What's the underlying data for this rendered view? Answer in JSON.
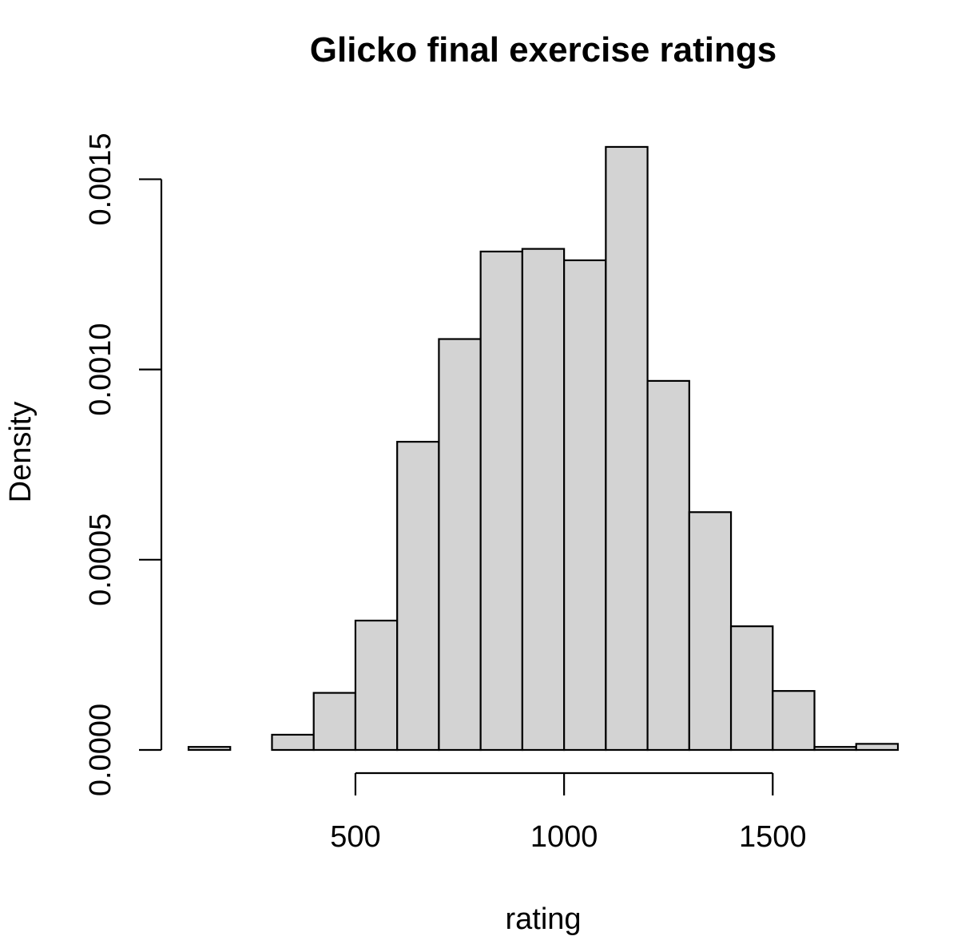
{
  "chart_data": {
    "type": "bar",
    "subtype": "histogram",
    "title": "Glicko final exercise ratings",
    "xlabel": "rating",
    "ylabel": "Density",
    "bins": [
      {
        "x0": 100,
        "x1": 200,
        "density": 8e-06
      },
      {
        "x0": 200,
        "x1": 300,
        "density": 0
      },
      {
        "x0": 300,
        "x1": 400,
        "density": 4e-05
      },
      {
        "x0": 400,
        "x1": 500,
        "density": 0.00015
      },
      {
        "x0": 500,
        "x1": 600,
        "density": 0.00034
      },
      {
        "x0": 600,
        "x1": 700,
        "density": 0.00081
      },
      {
        "x0": 700,
        "x1": 800,
        "density": 0.00108
      },
      {
        "x0": 800,
        "x1": 900,
        "density": 0.00131
      },
      {
        "x0": 900,
        "x1": 1000,
        "density": 0.001317
      },
      {
        "x0": 1000,
        "x1": 1100,
        "density": 0.001287
      },
      {
        "x0": 1100,
        "x1": 1200,
        "density": 0.001585
      },
      {
        "x0": 1200,
        "x1": 1300,
        "density": 0.00097
      },
      {
        "x0": 1300,
        "x1": 1400,
        "density": 0.000625
      },
      {
        "x0": 1400,
        "x1": 1500,
        "density": 0.000325
      },
      {
        "x0": 1500,
        "x1": 1600,
        "density": 0.000155
      },
      {
        "x0": 1600,
        "x1": 1700,
        "density": 8e-06
      },
      {
        "x0": 1700,
        "x1": 1800,
        "density": 1.6e-05
      }
    ],
    "x_ticks": [
      500,
      1000,
      1500
    ],
    "x_tick_labels": [
      "500",
      "1000",
      "1500"
    ],
    "y_ticks": [
      0,
      0.0005,
      0.001,
      0.0015
    ],
    "y_tick_labels": [
      "0.0000",
      "0.0005",
      "0.0010",
      "0.0015"
    ],
    "xlim": [
      100,
      1800
    ],
    "ylim": [
      0,
      0.0016
    ],
    "bar_fill": "#d3d3d3",
    "bar_stroke": "#000000",
    "grid": false,
    "legend": "none"
  }
}
